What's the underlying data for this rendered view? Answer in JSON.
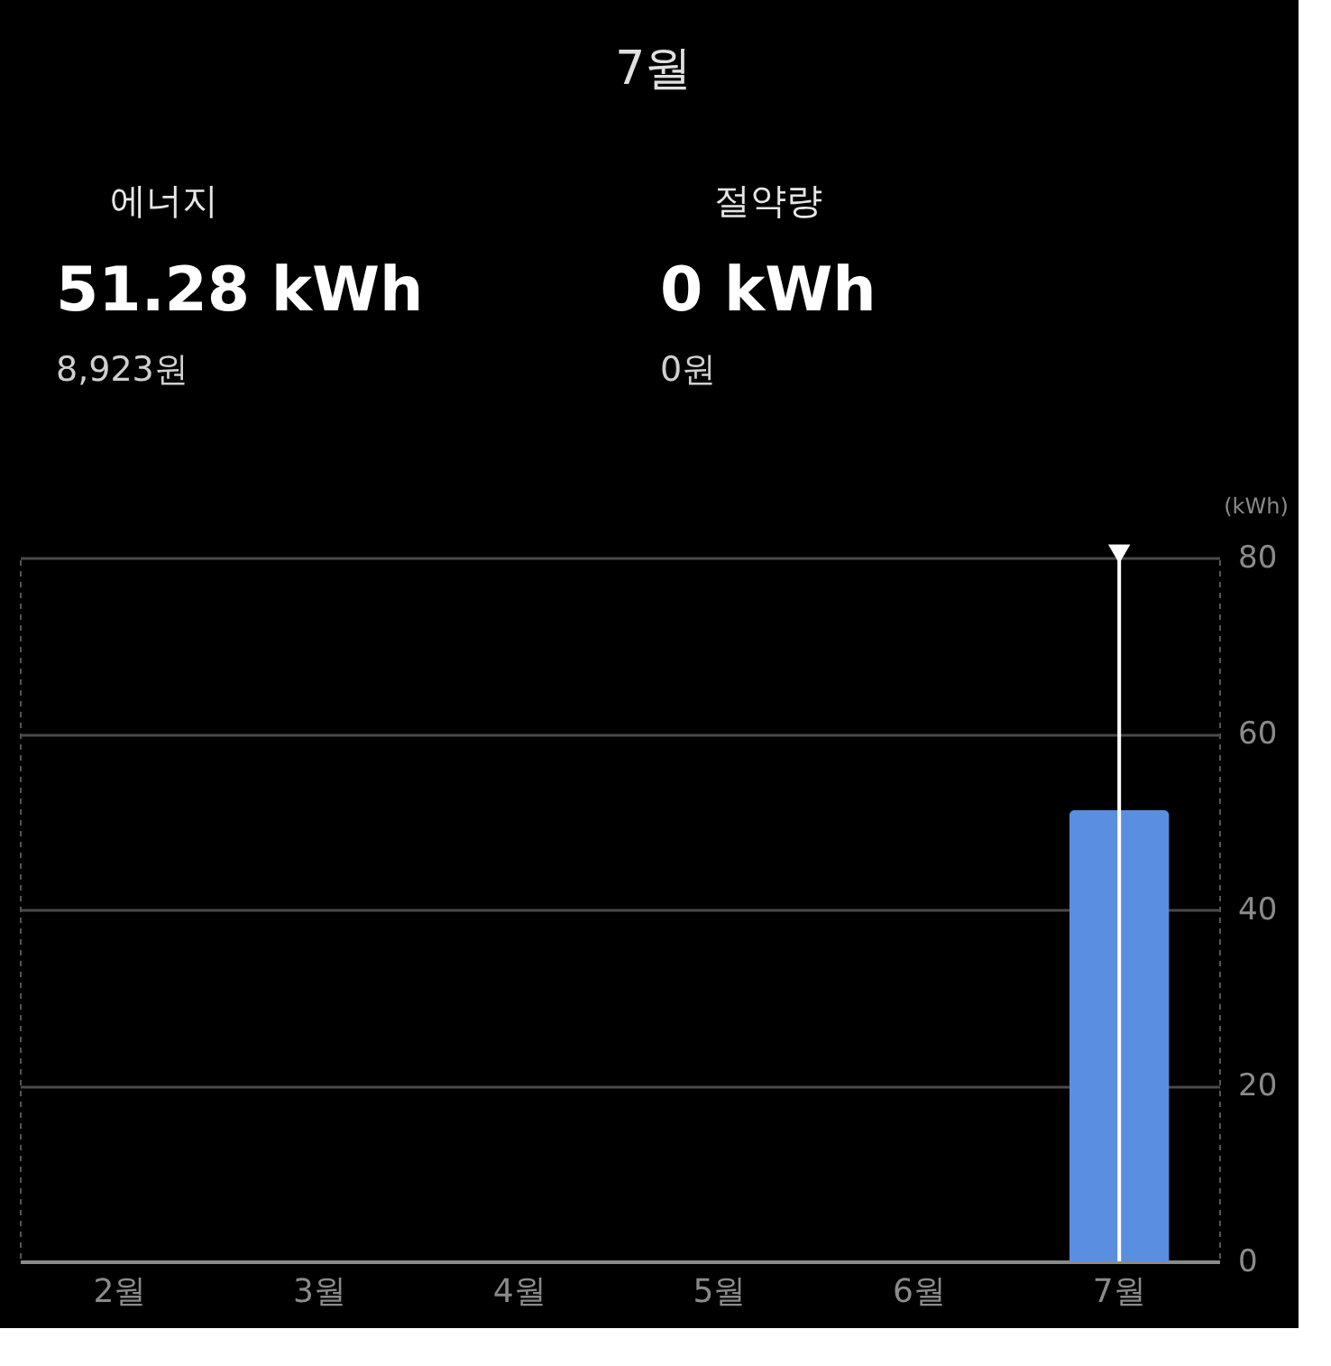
{
  "chart_data": {
    "type": "bar",
    "title": "7월",
    "annotations": [
      "에너지",
      "51.28 kWh",
      "8,923원",
      "절약량",
      "0 kWh",
      "0원"
    ],
    "ylabel": "(kWh)",
    "categories": [
      "2월",
      "3월",
      "4월",
      "5월",
      "6월",
      "7월"
    ],
    "values": [
      null,
      null,
      null,
      null,
      null,
      51.28
    ],
    "color": "#5a8ee0",
    "ylim": [
      0,
      80
    ],
    "yticks": [
      0,
      20,
      40,
      60,
      80
    ],
    "grid": "y",
    "ref_lines": [
      {
        "axis": "x",
        "value": "7월",
        "label": null,
        "color": "#ffffff"
      }
    ]
  }
}
